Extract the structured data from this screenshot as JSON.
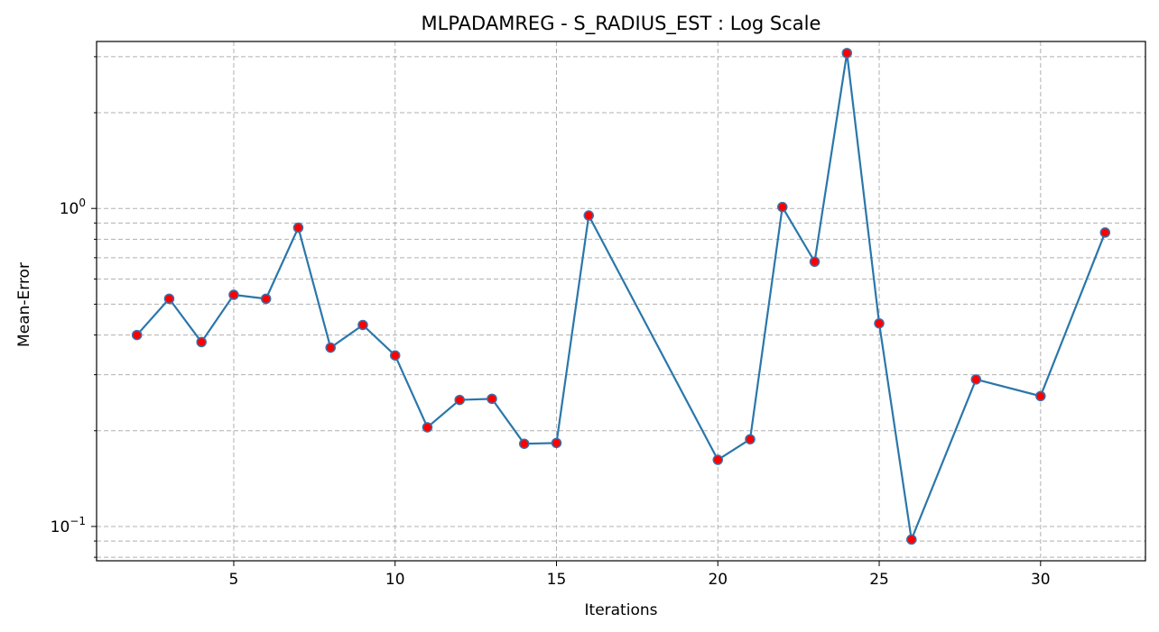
{
  "chart_data": {
    "type": "line",
    "title": "MLPADAMREG - S_RADIUS_EST : Log Scale",
    "xlabel": "Iterations",
    "ylabel": "Mean-Error",
    "xlim": [
      0.75,
      33.25
    ],
    "ylim": [
      0.078,
      3.35
    ],
    "yscale": "log",
    "grid": true,
    "x_ticks": [
      5,
      10,
      15,
      20,
      25,
      30
    ],
    "y_major_ticks": [
      {
        "value": 0.1,
        "label": "10",
        "exponent": "−1"
      },
      {
        "value": 1,
        "label": "10",
        "exponent": "0"
      }
    ],
    "y_minor_ticks": [
      0.08,
      0.09,
      0.2,
      0.3,
      0.4,
      0.5,
      0.6,
      0.7,
      0.8,
      0.9,
      2,
      3
    ],
    "series": [
      {
        "x": [
          2,
          3,
          4,
          5,
          6,
          7,
          8,
          9,
          10,
          11,
          12,
          13,
          14,
          15,
          16,
          20,
          21,
          22,
          23,
          24,
          25,
          26,
          28,
          30,
          32
        ],
        "y": [
          0.4,
          0.52,
          0.38,
          0.535,
          0.52,
          0.87,
          0.365,
          0.43,
          0.345,
          0.205,
          0.25,
          0.252,
          0.182,
          0.183,
          0.95,
          0.162,
          0.188,
          1.01,
          0.68,
          3.08,
          0.435,
          0.091,
          0.29,
          0.257,
          0.84
        ],
        "line_color": "#2a77aa",
        "marker_fill": "#ff0000",
        "marker_edge": "#3c6fa8"
      }
    ]
  }
}
